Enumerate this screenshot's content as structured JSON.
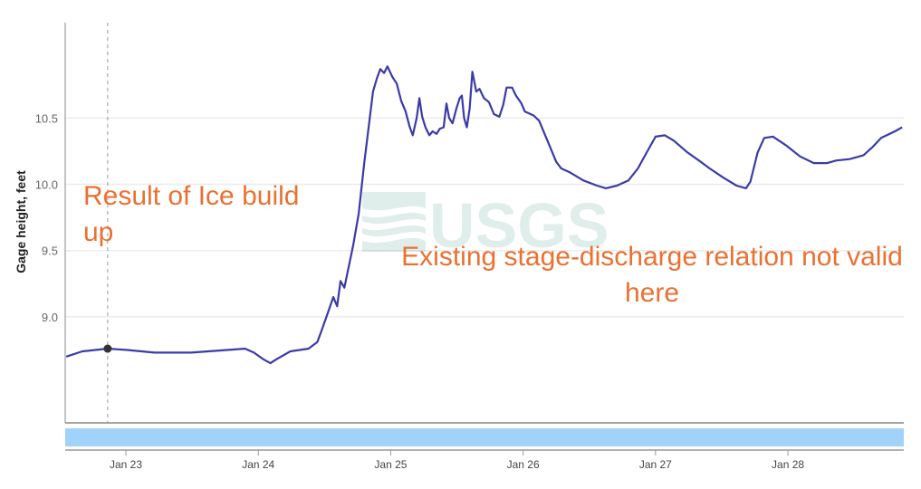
{
  "chart_data": {
    "type": "line",
    "title": "",
    "xlabel": "",
    "ylabel": "Gage height, feet",
    "xlim": [
      "01-22 13:00",
      "01-28 21:00"
    ],
    "ylim": [
      8.2,
      11.22
    ],
    "xticks": [
      {
        "x": "01-23 00:00",
        "label": "Jan 23"
      },
      {
        "x": "01-24 00:00",
        "label": "Jan 24"
      },
      {
        "x": "01-25 00:00",
        "label": "Jan 25"
      },
      {
        "x": "01-26 00:00",
        "label": "Jan 26"
      },
      {
        "x": "01-27 00:00",
        "label": "Jan 27"
      },
      {
        "x": "01-28 00:00",
        "label": "Jan 28"
      }
    ],
    "yticks": [
      {
        "y": 9.0,
        "label": "9.0"
      },
      {
        "y": 9.5,
        "label": "9.5"
      },
      {
        "y": 10.0,
        "label": "10.0"
      },
      {
        "y": 10.5,
        "label": "10.5"
      }
    ],
    "grid": true,
    "line_color": "#3a3aa8",
    "cursor": {
      "x": "01-22 20:42",
      "y": 8.76
    },
    "series": [
      {
        "x": [
          "01-22 13:12",
          "01-22 16:06",
          "01-22 20:42",
          "01-23 00:18",
          "01-23 05:12",
          "01-23 11:48",
          "01-23 18:18",
          "01-23 21:36",
          "01-23 23:12",
          "01-24 00:54",
          "01-24 02:12",
          "01-24 03:18",
          "01-24 05:48",
          "01-24 09:06",
          "01-24 10:42",
          "01-24 11:30",
          "01-24 12:36",
          "01-24 13:36",
          "01-24 14:18",
          "01-24 14:54",
          "01-24 15:36",
          "01-24 16:12",
          "01-24 17:12",
          "01-24 18:12",
          "01-24 19:12",
          "01-24 20:12",
          "01-24 20:48",
          "01-24 21:30",
          "01-24 22:06",
          "01-24 22:48",
          "01-24 23:24",
          "01-25 00:18",
          "01-25 01:06",
          "01-25 01:54",
          "01-25 02:42",
          "01-25 03:24",
          "01-25 04:00",
          "01-25 04:42",
          "01-25 05:12",
          "01-25 05:42",
          "01-25 06:18",
          "01-25 07:00",
          "01-25 07:36",
          "01-25 08:18",
          "01-25 08:54",
          "01-25 09:36",
          "01-25 10:06",
          "01-25 10:36",
          "01-25 11:12",
          "01-25 11:54",
          "01-25 12:30",
          "01-25 12:54",
          "01-25 13:18",
          "01-25 13:48",
          "01-25 14:18",
          "01-25 14:48",
          "01-25 15:30",
          "01-25 16:06",
          "01-25 16:54",
          "01-25 17:48",
          "01-25 18:42",
          "01-25 19:42",
          "01-25 20:24",
          "01-25 21:00",
          "01-25 22:00",
          "01-25 22:42",
          "01-25 23:42",
          "01-26 00:18",
          "01-26 01:54",
          "01-26 02:54",
          "01-26 04:24",
          "01-26 06:00",
          "01-26 06:54",
          "01-26 08:30",
          "01-26 10:54",
          "01-26 13:24",
          "01-26 15:00",
          "01-26 17:00",
          "01-26 19:06",
          "01-26 20:48",
          "01-26 22:24",
          "01-27 00:00",
          "01-27 01:42",
          "01-27 03:18",
          "01-27 05:48",
          "01-27 08:12",
          "01-27 09:48",
          "01-27 12:18",
          "01-27 14:42",
          "01-27 16:24",
          "01-27 17:12",
          "01-27 18:30",
          "01-27 19:42",
          "01-27 21:18",
          "01-27 23:48",
          "01-28 02:12",
          "01-28 04:42",
          "01-28 07:06",
          "01-28 08:48",
          "01-28 11:12",
          "01-28 13:42",
          "01-28 15:18",
          "01-28 16:54",
          "01-28 19:24",
          "01-28 20:42"
        ],
        "y": [
          8.7,
          8.74,
          8.76,
          8.75,
          8.73,
          8.73,
          8.75,
          8.76,
          8.73,
          8.68,
          8.65,
          8.68,
          8.74,
          8.76,
          8.81,
          8.9,
          9.03,
          9.15,
          9.08,
          9.27,
          9.22,
          9.34,
          9.54,
          9.78,
          10.16,
          10.5,
          10.7,
          10.8,
          10.87,
          10.84,
          10.89,
          10.81,
          10.76,
          10.63,
          10.55,
          10.44,
          10.37,
          10.5,
          10.65,
          10.51,
          10.43,
          10.37,
          10.4,
          10.38,
          10.42,
          10.43,
          10.61,
          10.5,
          10.46,
          10.57,
          10.65,
          10.67,
          10.5,
          10.43,
          10.57,
          10.85,
          10.7,
          10.72,
          10.65,
          10.62,
          10.53,
          10.51,
          10.6,
          10.73,
          10.73,
          10.67,
          10.61,
          10.55,
          10.52,
          10.48,
          10.33,
          10.17,
          10.12,
          10.09,
          10.03,
          9.99,
          9.97,
          9.99,
          10.03,
          10.12,
          10.24,
          10.36,
          10.37,
          10.33,
          10.24,
          10.17,
          10.12,
          10.05,
          9.99,
          9.97,
          10.02,
          10.24,
          10.35,
          10.36,
          10.29,
          10.21,
          10.16,
          10.16,
          10.18,
          10.19,
          10.22,
          10.28,
          10.35,
          10.4,
          10.43
        ]
      }
    ],
    "navigator_color": "#a0d2fa",
    "annotations": [
      {
        "text": "Result of Ice build up",
        "color": "#E97132"
      },
      {
        "text": "Existing stage-discharge relation not valid here",
        "color": "#E97132"
      }
    ],
    "watermark": "USGS"
  }
}
